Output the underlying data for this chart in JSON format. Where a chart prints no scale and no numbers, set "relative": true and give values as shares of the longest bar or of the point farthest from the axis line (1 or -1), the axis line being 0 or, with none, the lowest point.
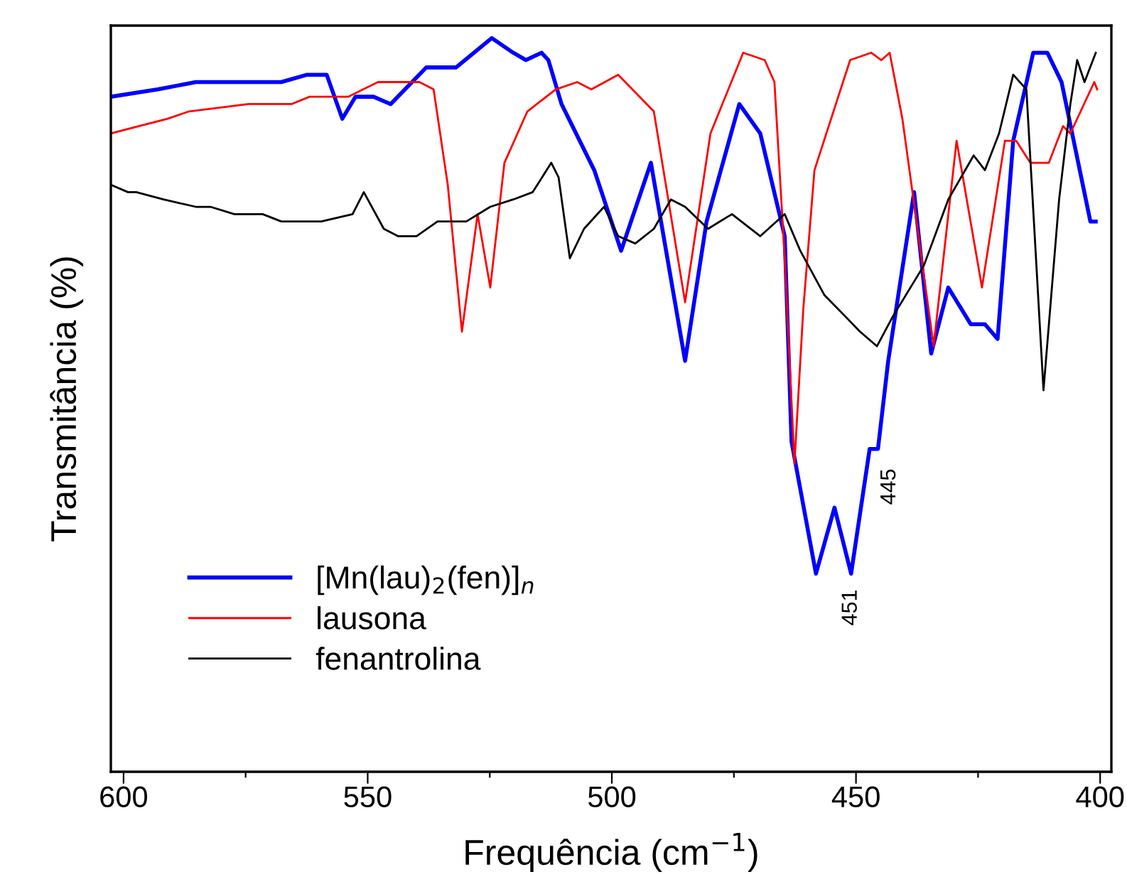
{
  "chart_data": {
    "type": "line",
    "relative": true,
    "xlabel": "Frequência (cm$^{−1}$)",
    "ylabel": "Transmitância (%)",
    "xlim": [
      602.6,
      397.7
    ],
    "xticks": [
      600,
      {
        "value": 575,
        "label": null
      },
      550,
      {
        "value": 525,
        "label": null
      },
      500,
      {
        "value": 475,
        "label": null
      },
      450,
      {
        "value": 425,
        "label": null
      },
      400
    ],
    "grid": false,
    "legend": "bottom left",
    "marker": "none",
    "line_style": "solid",
    "annotations": [
      {
        "text": "451",
        "x": 451,
        "y": 0.27
      },
      {
        "text": "445",
        "x": 445.5,
        "y": 0.44
      }
    ],
    "series": [
      {
        "name": "[Mn(lau)$_{2}$(fen)]$_{n}$",
        "color": "#0000ff",
        "x": [
          602.6,
          593.0,
          585.2,
          573.5,
          567.7,
          562.4,
          558.4,
          555.2,
          552.5,
          548.8,
          545.3,
          538.0,
          531.9,
          524.6,
          520.2,
          517.6,
          514.4,
          513.0,
          510.3,
          503.6,
          498.1,
          492.0,
          485.0,
          480.6,
          473.9,
          469.6,
          464.6,
          463.2,
          458.2,
          454.4,
          451.0,
          447.2,
          445.5,
          443.4,
          438.1,
          434.6,
          431.1,
          426.5,
          423.6,
          421.0,
          417.8,
          413.7,
          410.8,
          407.9,
          402.0,
          400.9
        ],
        "values": [
          0.92,
          0.93,
          0.94,
          0.94,
          0.94,
          0.95,
          0.95,
          0.89,
          0.92,
          0.92,
          0.91,
          0.96,
          0.96,
          1.0,
          0.98,
          0.97,
          0.98,
          0.97,
          0.91,
          0.82,
          0.71,
          0.83,
          0.56,
          0.75,
          0.91,
          0.87,
          0.73,
          0.45,
          0.27,
          0.36,
          0.27,
          0.44,
          0.44,
          0.56,
          0.79,
          0.57,
          0.66,
          0.61,
          0.61,
          0.59,
          0.86,
          0.98,
          0.98,
          0.94,
          0.75,
          0.75
        ]
      },
      {
        "name": "lausona",
        "color": "#ff0000",
        "x": [
          602.6,
          596.8,
          591.0,
          586.6,
          574.4,
          565.6,
          561.9,
          554.0,
          547.9,
          539.4,
          536.5,
          533.6,
          530.7,
          527.5,
          524.9,
          522.0,
          517.3,
          511.5,
          507.1,
          504.2,
          498.7,
          491.4,
          485.0,
          479.8,
          473.1,
          468.7,
          466.7,
          464.6,
          462.6,
          460.8,
          458.5,
          451.2,
          446.9,
          444.8,
          443.1,
          440.5,
          434.1,
          429.4,
          424.2,
          419.5,
          417.2,
          414.3,
          410.5,
          407.6,
          406.1,
          401.2,
          400.6
        ],
        "values": [
          0.87,
          0.88,
          0.89,
          0.9,
          0.91,
          0.91,
          0.92,
          0.92,
          0.94,
          0.94,
          0.93,
          0.8,
          0.6,
          0.76,
          0.66,
          0.83,
          0.9,
          0.93,
          0.94,
          0.93,
          0.95,
          0.9,
          0.64,
          0.87,
          0.98,
          0.97,
          0.94,
          0.7,
          0.42,
          0.63,
          0.82,
          0.97,
          0.98,
          0.97,
          0.98,
          0.89,
          0.58,
          0.86,
          0.66,
          0.86,
          0.86,
          0.83,
          0.83,
          0.88,
          0.87,
          0.94,
          0.93
        ]
      },
      {
        "name": "fenantrolina",
        "color": "#000000",
        "x": [
          602.6,
          599.1,
          597.4,
          591.8,
          585.2,
          582.2,
          577.3,
          571.5,
          567.7,
          562.7,
          559.5,
          553.1,
          550.8,
          546.7,
          543.8,
          540.0,
          535.7,
          529.8,
          524.9,
          520.2,
          516.2,
          512.4,
          510.9,
          508.6,
          505.7,
          501.6,
          498.7,
          495.2,
          491.4,
          487.9,
          485.0,
          480.3,
          475.4,
          469.6,
          464.6,
          461.4,
          456.5,
          452.1,
          449.2,
          445.7,
          442.5,
          436.1,
          431.1,
          425.9,
          423.6,
          420.7,
          417.8,
          415.1,
          411.6,
          408.4,
          406.1,
          404.7,
          403.2,
          400.9
        ],
        "values": [
          0.8,
          0.79,
          0.79,
          0.78,
          0.77,
          0.77,
          0.76,
          0.76,
          0.75,
          0.75,
          0.75,
          0.76,
          0.79,
          0.74,
          0.73,
          0.73,
          0.75,
          0.75,
          0.77,
          0.78,
          0.79,
          0.83,
          0.81,
          0.7,
          0.74,
          0.77,
          0.73,
          0.72,
          0.74,
          0.78,
          0.77,
          0.74,
          0.76,
          0.73,
          0.76,
          0.71,
          0.65,
          0.62,
          0.6,
          0.58,
          0.62,
          0.69,
          0.78,
          0.84,
          0.82,
          0.87,
          0.95,
          0.93,
          0.52,
          0.78,
          0.91,
          0.97,
          0.94,
          0.98
        ]
      }
    ]
  }
}
